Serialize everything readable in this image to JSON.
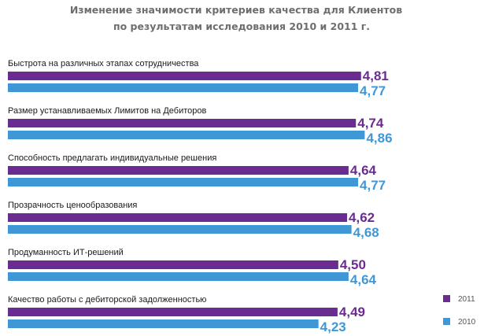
{
  "chart_data": {
    "type": "bar",
    "orientation": "horizontal",
    "title": "Изменение значимости критериев качества для Клиентов",
    "subtitle": "по результатам исследования  2010 и 2011 г.",
    "categories": [
      "Быстрота на различных этапах сотрудничества",
      "Размер устанавливаемых Лимитов на Дебиторов",
      "Способность предлагать индивидуальные решения",
      "Прозрачность ценообразования",
      "Продуманность ИТ-решений",
      "Качество работы с дебиторской задолженностью"
    ],
    "series": [
      {
        "name": "2011",
        "color": "#6b2c91",
        "values": [
          4.81,
          4.74,
          4.64,
          4.62,
          4.5,
          4.49
        ],
        "labels": [
          "4,81",
          "4,74",
          "4,64",
          "4,62",
          "4,50",
          "4,49"
        ]
      },
      {
        "name": "2010",
        "color": "#3f97d6",
        "values": [
          4.77,
          4.86,
          4.77,
          4.68,
          4.64,
          4.23
        ],
        "labels": [
          "4,77",
          "4,86",
          "4,77",
          "4,68",
          "4,64",
          "4,23"
        ]
      }
    ],
    "legend": {
      "position": "bottom-right",
      "items": [
        "2011",
        "2010"
      ]
    },
    "grid": false
  }
}
